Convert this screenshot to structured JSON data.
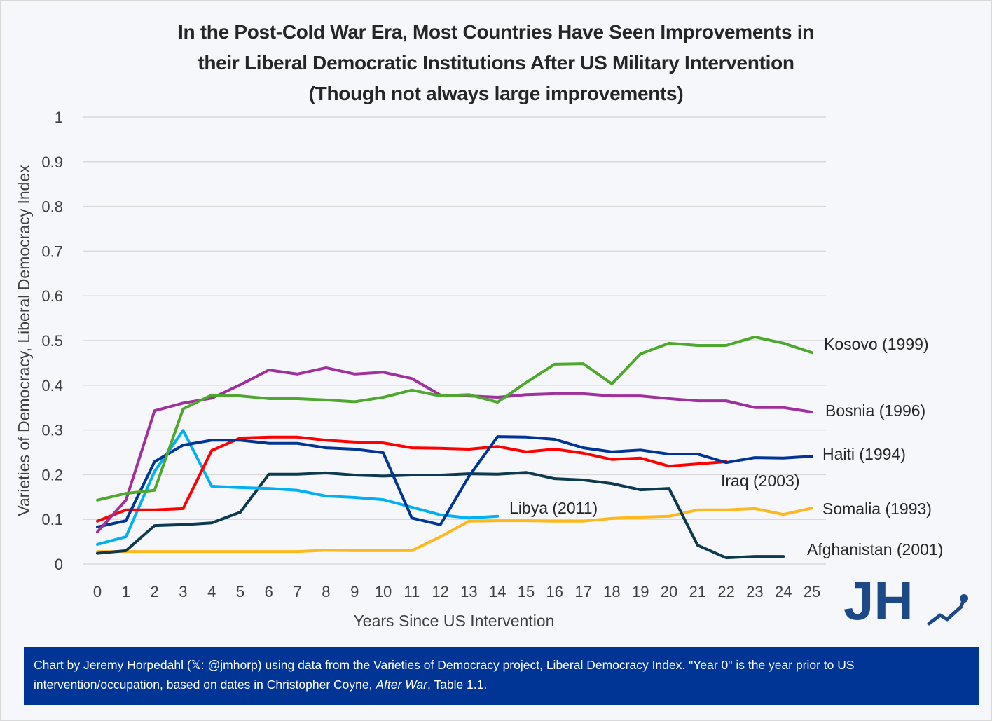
{
  "chart_data": {
    "type": "line",
    "title": [
      "In the Post-Cold War Era, Most Countries Have Seen Improvements in",
      "their Liberal Democratic Institutions After US Military Intervention",
      "(Though not always large improvements)"
    ],
    "xlabel": "Years Since US Intervention",
    "ylabel": "Varieties of Democracy, Liberal Democracy Index",
    "x": [
      0,
      1,
      2,
      3,
      4,
      5,
      6,
      7,
      8,
      9,
      10,
      11,
      12,
      13,
      14,
      15,
      16,
      17,
      18,
      19,
      20,
      21,
      22,
      23,
      24,
      25
    ],
    "xticks": [
      "0",
      "1",
      "2",
      "3",
      "4",
      "5",
      "6",
      "7",
      "8",
      "9",
      "10",
      "11",
      "12",
      "13",
      "14",
      "15",
      "16",
      "17",
      "18",
      "19",
      "20",
      "21",
      "22",
      "23",
      "24",
      "25"
    ],
    "yticks": [
      "0",
      "0.1",
      "0.2",
      "0.3",
      "0.4",
      "0.5",
      "0.6",
      "0.7",
      "0.8",
      "0.9",
      "1"
    ],
    "ylim": [
      0,
      1
    ],
    "xlim": [
      0,
      25
    ],
    "grid": "horizontal",
    "legend": "direct-labels-right",
    "series": [
      {
        "name": "Kosovo (1999)",
        "color": "#4ea72e",
        "values": [
          0.143,
          0.158,
          0.165,
          0.347,
          0.378,
          0.376,
          0.37,
          0.37,
          0.367,
          0.363,
          0.373,
          0.389,
          0.376,
          0.379,
          0.362,
          0.406,
          0.447,
          0.448,
          0.403,
          0.47,
          0.494,
          0.489,
          0.489,
          0.508,
          0.494,
          0.473
        ]
      },
      {
        "name": "Bosnia (1996)",
        "color": "#a0319c",
        "values": [
          0.072,
          0.143,
          0.343,
          0.36,
          0.371,
          0.401,
          0.434,
          0.425,
          0.439,
          0.425,
          0.429,
          0.415,
          0.378,
          0.376,
          0.373,
          0.379,
          0.381,
          0.381,
          0.376,
          0.376,
          0.37,
          0.365,
          0.365,
          0.35,
          0.35,
          0.34
        ]
      },
      {
        "name": "Haiti (1994)",
        "color": "#003595",
        "values": [
          0.083,
          0.097,
          0.229,
          0.266,
          0.277,
          0.277,
          0.27,
          0.27,
          0.26,
          0.257,
          0.249,
          0.103,
          0.088,
          0.196,
          0.285,
          0.284,
          0.279,
          0.26,
          0.251,
          0.255,
          0.246,
          0.246,
          0.227,
          0.238,
          0.237,
          0.241
        ]
      },
      {
        "name": "Iraq (2003)",
        "color": "#ff0000",
        "values": [
          0.096,
          0.121,
          0.121,
          0.124,
          0.254,
          0.282,
          0.284,
          0.284,
          0.277,
          0.273,
          0.271,
          0.26,
          0.259,
          0.257,
          0.263,
          0.251,
          0.257,
          0.248,
          0.234,
          0.237,
          0.219,
          0.224,
          0.229
        ]
      },
      {
        "name": "Libya (2011)",
        "color": "#00b0f0",
        "values": [
          0.044,
          0.061,
          0.207,
          0.299,
          0.174,
          0.171,
          0.169,
          0.165,
          0.152,
          0.149,
          0.144,
          0.127,
          0.11,
          0.103,
          0.107
        ]
      },
      {
        "name": "Somalia (1993)",
        "color": "#ffb81c",
        "values": [
          0.028,
          0.028,
          0.028,
          0.028,
          0.028,
          0.028,
          0.028,
          0.028,
          0.031,
          0.03,
          0.03,
          0.03,
          0.061,
          0.096,
          0.097,
          0.097,
          0.096,
          0.096,
          0.102,
          0.105,
          0.107,
          0.121,
          0.121,
          0.124,
          0.111,
          0.125
        ]
      },
      {
        "name": "Afghanistan (2001)",
        "color": "#0e3a4f",
        "values": [
          0.024,
          0.03,
          0.086,
          0.088,
          0.092,
          0.116,
          0.201,
          0.201,
          0.204,
          0.199,
          0.197,
          0.199,
          0.199,
          0.202,
          0.201,
          0.205,
          0.191,
          0.188,
          0.18,
          0.166,
          0.169,
          0.042,
          0.014,
          0.017,
          0.017
        ]
      }
    ]
  },
  "footnote": {
    "text_before": "Chart by Jeremy Horpedahl (𝕏: @jmhorp) using data from the Varieties of Democracy project, Liberal Democracy Index. \"Year 0\" is the year prior to US intervention/occupation, based on dates in Christopher Coyne, ",
    "italic": "After War",
    "text_after": ", Table 1.1."
  },
  "logo": {
    "text": "JH",
    "color": "#1d4a87"
  }
}
